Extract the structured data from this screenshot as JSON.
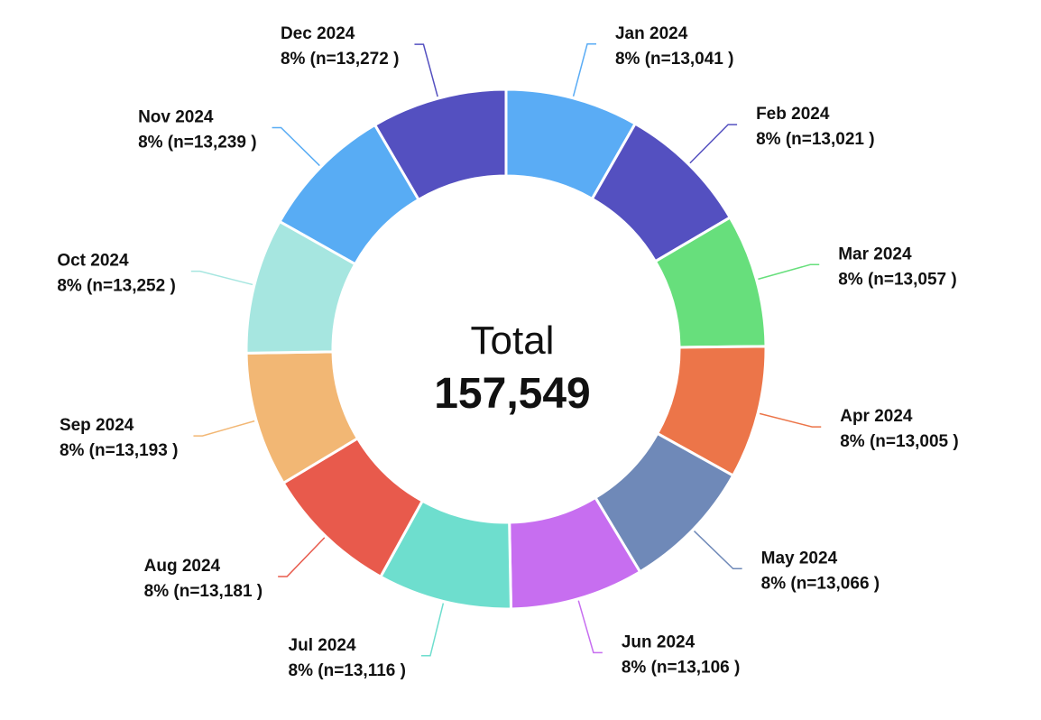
{
  "chart_data": {
    "type": "pie",
    "variant": "donut",
    "center_label": "Total",
    "center_value": "157,549",
    "start": "top",
    "direction": "clockwise",
    "categories": [
      "Jan 2024",
      "Feb 2024",
      "Mar 2024",
      "Apr 2024",
      "May 2024",
      "Jun 2024",
      "Jul 2024",
      "Aug 2024",
      "Sep 2024",
      "Oct 2024",
      "Nov 2024",
      "Dec 2024"
    ],
    "values": [
      13041,
      13021,
      13057,
      13005,
      13066,
      13106,
      13116,
      13181,
      13193,
      13252,
      13239,
      13272
    ],
    "data_labels": [
      "8% (n=13,041 )",
      "8% (n=13,021 )",
      "8% (n=13,057 )",
      "8% (n=13,005 )",
      "8% (n=13,066 )",
      "8% (n=13,106 )",
      "8% (n=13,116 )",
      "8% (n=13,181 )",
      "8% (n=13,193 )",
      "8% (n=13,252 )",
      "8% (n=13,239 )",
      "8% (n=13,272 )"
    ],
    "colors": [
      "#5aacf5",
      "#5450c0",
      "#67df7c",
      "#ec7549",
      "#6f89b8",
      "#c76ef0",
      "#6edece",
      "#e85a4c",
      "#f2b774",
      "#a6e6e0",
      "#58acf4",
      "#5450c0"
    ]
  }
}
